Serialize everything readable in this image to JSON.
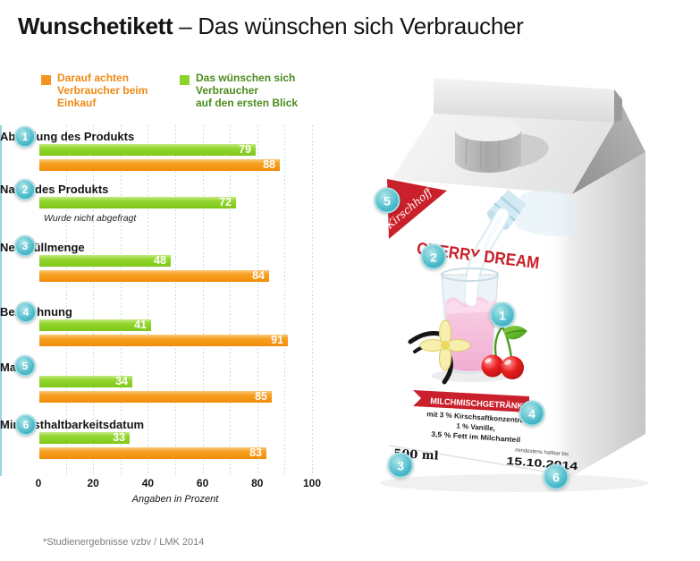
{
  "title": {
    "bold": "Wunschetikett",
    "rest": " – Das wünschen sich Verbraucher"
  },
  "legend": [
    {
      "lines": [
        "Darauf achten",
        "Verbraucher beim",
        "Einkauf"
      ],
      "swatch_color": "#f5941e",
      "text_color": "#ee8a15"
    },
    {
      "lines": [
        "Das wünschen sich",
        "Verbraucher",
        "auf den ersten Blick"
      ],
      "swatch_color": "#8dd32c",
      "text_color": "#4d8c1d"
    }
  ],
  "chart_data": {
    "type": "bar",
    "orientation": "horizontal",
    "title": "Wunschetikett – Das wünschen sich Verbraucher",
    "categories": [
      "Abbildung des Produkts",
      "Name des Produkts",
      "Nettofüllmenge",
      "Bezeichnung",
      "Marke",
      "Mindesthaltbarkeitsdatum"
    ],
    "series": [
      {
        "name": "Darauf achten Verbraucher beim Einkauf",
        "color": "#f5941e",
        "values": [
          88,
          null,
          84,
          91,
          85,
          83
        ]
      },
      {
        "name": "Das wünschen sich Verbraucher auf den ersten Blick",
        "color": "#8dd32c",
        "values": [
          79,
          72,
          48,
          41,
          34,
          33
        ]
      }
    ],
    "missing_note": "Wurde nicht abgefragt",
    "missing_note_category": "Name des Produkts",
    "xlabel": "Angaben in Prozent",
    "xticks": [
      0,
      20,
      40,
      60,
      80,
      100
    ],
    "xlim": [
      0,
      100
    ],
    "grid": "dotted-vertical"
  },
  "footnote": "*Studienergebnisse vzbv / LMK 2014",
  "markers": {
    "chart": [
      "1",
      "2",
      "3",
      "4",
      "5",
      "6"
    ],
    "carton": [
      "1",
      "2",
      "3",
      "4",
      "5",
      "6"
    ]
  },
  "carton": {
    "brand": "Kirschhoff",
    "product_name": "CHERRY DREAM",
    "category_banner": "MILCHMISCHGETRÄNK",
    "ingredients": [
      "mit 3 % Kirschsaftkonzentrat,",
      "1 % Vanille,",
      "3,5 % Fett im Milchanteil"
    ],
    "volume": "500 ml",
    "best_before_label": "mindestens haltbar bis",
    "best_before_date": "15.10.2014"
  },
  "colors": {
    "orange": "#f5941e",
    "green": "#8dd32c",
    "marker_teal": "#3fb4c4",
    "red": "#c9202b",
    "grid_blue": "#a6dbec"
  }
}
